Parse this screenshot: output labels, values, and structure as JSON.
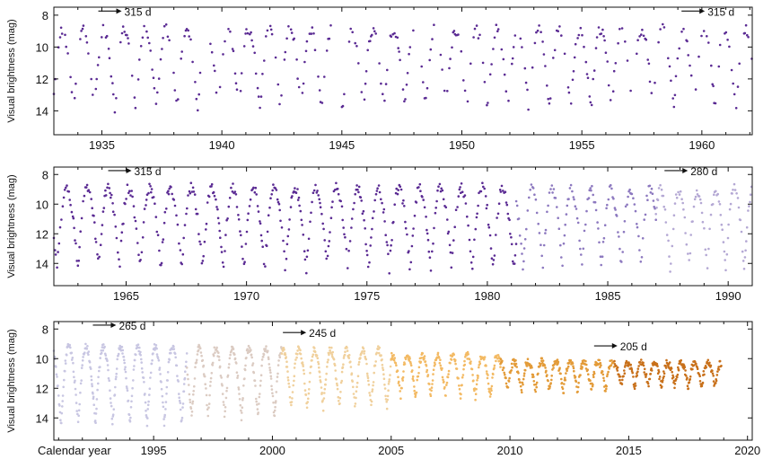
{
  "chart_data": [
    {
      "type": "scatter",
      "panel": 1,
      "ylabel": "Visual brightness (mag)",
      "y_axis": "inverted",
      "ylim": [
        15.5,
        7.5
      ],
      "xlim": [
        1933.0,
        1962.1
      ],
      "x_ticks": [
        1935,
        1940,
        1945,
        1950,
        1955,
        1960
      ],
      "y_ticks": [
        8,
        10,
        12,
        14
      ],
      "annotations": [
        {
          "text": "315 d",
          "x": 1935.9,
          "y": 7.8
        },
        {
          "text": "315 d",
          "x": 1960.2,
          "y": 7.8
        }
      ],
      "series": [
        {
          "color": "#5a2a93",
          "segments": [
            {
              "x0": 1933.0,
              "x1": 1962.1,
              "period_days": 315,
              "max_mag": 8.9,
              "min_mag": 14.0,
              "phase_year": 1934.68,
              "gaps": [
                [
                  1939.1,
                  1939.5
                ],
                [
                  1944.6,
                  1945.0
                ]
              ]
            }
          ]
        }
      ]
    },
    {
      "type": "scatter",
      "panel": 2,
      "ylabel": "Visual brightness (mag)",
      "y_axis": "inverted",
      "ylim": [
        15.5,
        7.5
      ],
      "xlim": [
        1962.0,
        1991.0
      ],
      "x_ticks": [
        1965,
        1970,
        1975,
        1980,
        1985,
        1990
      ],
      "y_ticks": [
        8,
        10,
        12,
        14
      ],
      "annotations": [
        {
          "text": "315 d",
          "x": 1965.3,
          "y": 7.8
        },
        {
          "text": "280 d",
          "x": 1988.4,
          "y": 7.8
        }
      ],
      "series": [
        {
          "color": "#5a2a93",
          "segments": [
            {
              "x0": 1962.0,
              "x1": 1981.2,
              "period_days": 315,
              "max_mag": 8.9,
              "min_mag": 14.4,
              "phase_year": 1964.72
            }
          ]
        },
        {
          "color": "#8c78bf",
          "segments": [
            {
              "x0": 1981.2,
              "x1": 1987.0,
              "period_days": 298,
              "max_mag": 9.0,
              "min_mag": 14.2,
              "phase_year": 1982.3
            }
          ]
        },
        {
          "color": "#b4a8d4",
          "segments": [
            {
              "x0": 1987.0,
              "x1": 1991.0,
              "period_days": 280,
              "max_mag": 9.0,
              "min_mag": 14.4,
              "phase_year": 1987.6
            }
          ]
        }
      ]
    },
    {
      "type": "scatter",
      "panel": 3,
      "ylabel": "Visual brightness (mag)",
      "xlabel": "Calendar year",
      "y_axis": "inverted",
      "ylim": [
        15.5,
        7.5
      ],
      "xlim": [
        1990.8,
        2020.2
      ],
      "x_ticks": [
        1995,
        2000,
        2005,
        2010,
        2015,
        2020
      ],
      "y_ticks": [
        8,
        10,
        12,
        14
      ],
      "annotations": [
        {
          "text": "265 d",
          "x": 1993.5,
          "y": 7.8
        },
        {
          "text": "245 d",
          "x": 2001.5,
          "y": 8.3
        },
        {
          "text": "205 d",
          "x": 2014.6,
          "y": 9.2
        }
      ],
      "series": [
        {
          "color": "#c8c6e2",
          "segments": [
            {
              "x0": 1990.8,
              "x1": 1996.4,
              "period_days": 265,
              "max_mag": 9.2,
              "min_mag": 14.4,
              "phase_year": 1991.1
            }
          ]
        },
        {
          "color": "#dbcbc2",
          "segments": [
            {
              "x0": 1996.4,
              "x1": 2000.4,
              "period_days": 255,
              "max_mag": 9.3,
              "min_mag": 14.0,
              "phase_year": 1996.6
            }
          ]
        },
        {
          "color": "#f0d09c",
          "segments": [
            {
              "x0": 2000.4,
              "x1": 2005.0,
              "period_days": 245,
              "max_mag": 9.4,
              "min_mag": 13.4,
              "phase_year": 2000.8
            }
          ]
        },
        {
          "color": "#f3ba64",
          "segments": [
            {
              "x0": 2005.0,
              "x1": 2009.6,
              "period_days": 230,
              "max_mag": 9.8,
              "min_mag": 12.6,
              "phase_year": 2005.4
            }
          ]
        },
        {
          "color": "#e39b38",
          "segments": [
            {
              "x0": 2009.6,
              "x1": 2014.4,
              "period_days": 215,
              "max_mag": 10.2,
              "min_mag": 12.2,
              "phase_year": 2009.9
            }
          ]
        },
        {
          "color": "#c8701a",
          "segments": [
            {
              "x0": 2014.4,
              "x1": 2018.9,
              "period_days": 205,
              "max_mag": 10.3,
              "min_mag": 11.9,
              "phase_year": 2014.7
            }
          ]
        }
      ]
    }
  ]
}
